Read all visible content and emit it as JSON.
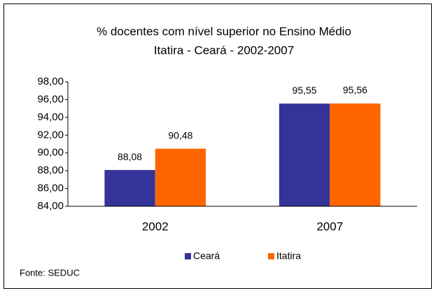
{
  "chart_data": {
    "type": "bar",
    "title": "% docentes com nível superior no Ensino Médio",
    "subtitle": "Itatira - Ceará - 2002-2007",
    "categories": [
      "2002",
      "2007"
    ],
    "series": [
      {
        "name": "Ceará",
        "color": "#333399",
        "values": [
          88.08,
          95.55
        ],
        "value_labels": [
          "88,08",
          "95,55"
        ]
      },
      {
        "name": "Itatira",
        "color": "#ff6600",
        "values": [
          90.48,
          95.56
        ],
        "value_labels": [
          "90,48",
          "95,56"
        ]
      }
    ],
    "ylim": [
      84,
      98
    ],
    "yticks": [
      {
        "value": 84,
        "label": "84,00"
      },
      {
        "value": 86,
        "label": "86,00"
      },
      {
        "value": 88,
        "label": "88,00"
      },
      {
        "value": 90,
        "label": "90,00"
      },
      {
        "value": 92,
        "label": "92,00"
      },
      {
        "value": 94,
        "label": "94,00"
      },
      {
        "value": 96,
        "label": "96,00"
      },
      {
        "value": 98,
        "label": "98,00"
      }
    ],
    "grid": false,
    "legend": "bottom",
    "source": "Fonte: SEDUC"
  }
}
